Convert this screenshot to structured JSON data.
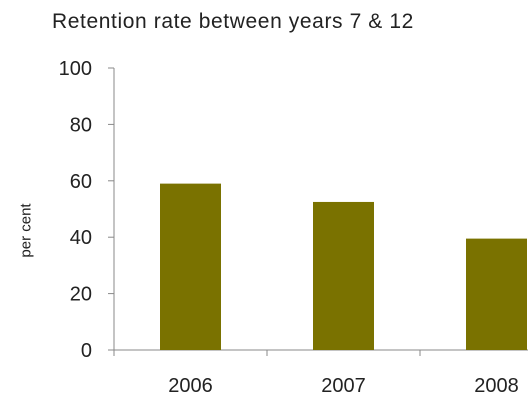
{
  "chart_data": {
    "type": "bar",
    "title": "Retention rate between years 7 & 12",
    "xlabel": "",
    "ylabel": "per cent",
    "categories": [
      "2006",
      "2007",
      "2008"
    ],
    "values": [
      59,
      52.5,
      39.5
    ],
    "ylim": [
      0,
      100
    ],
    "yticks": [
      "0",
      "20",
      "40",
      "60",
      "80",
      "100"
    ],
    "grid": false,
    "legend": "none",
    "bar_color": "#7a7200"
  }
}
